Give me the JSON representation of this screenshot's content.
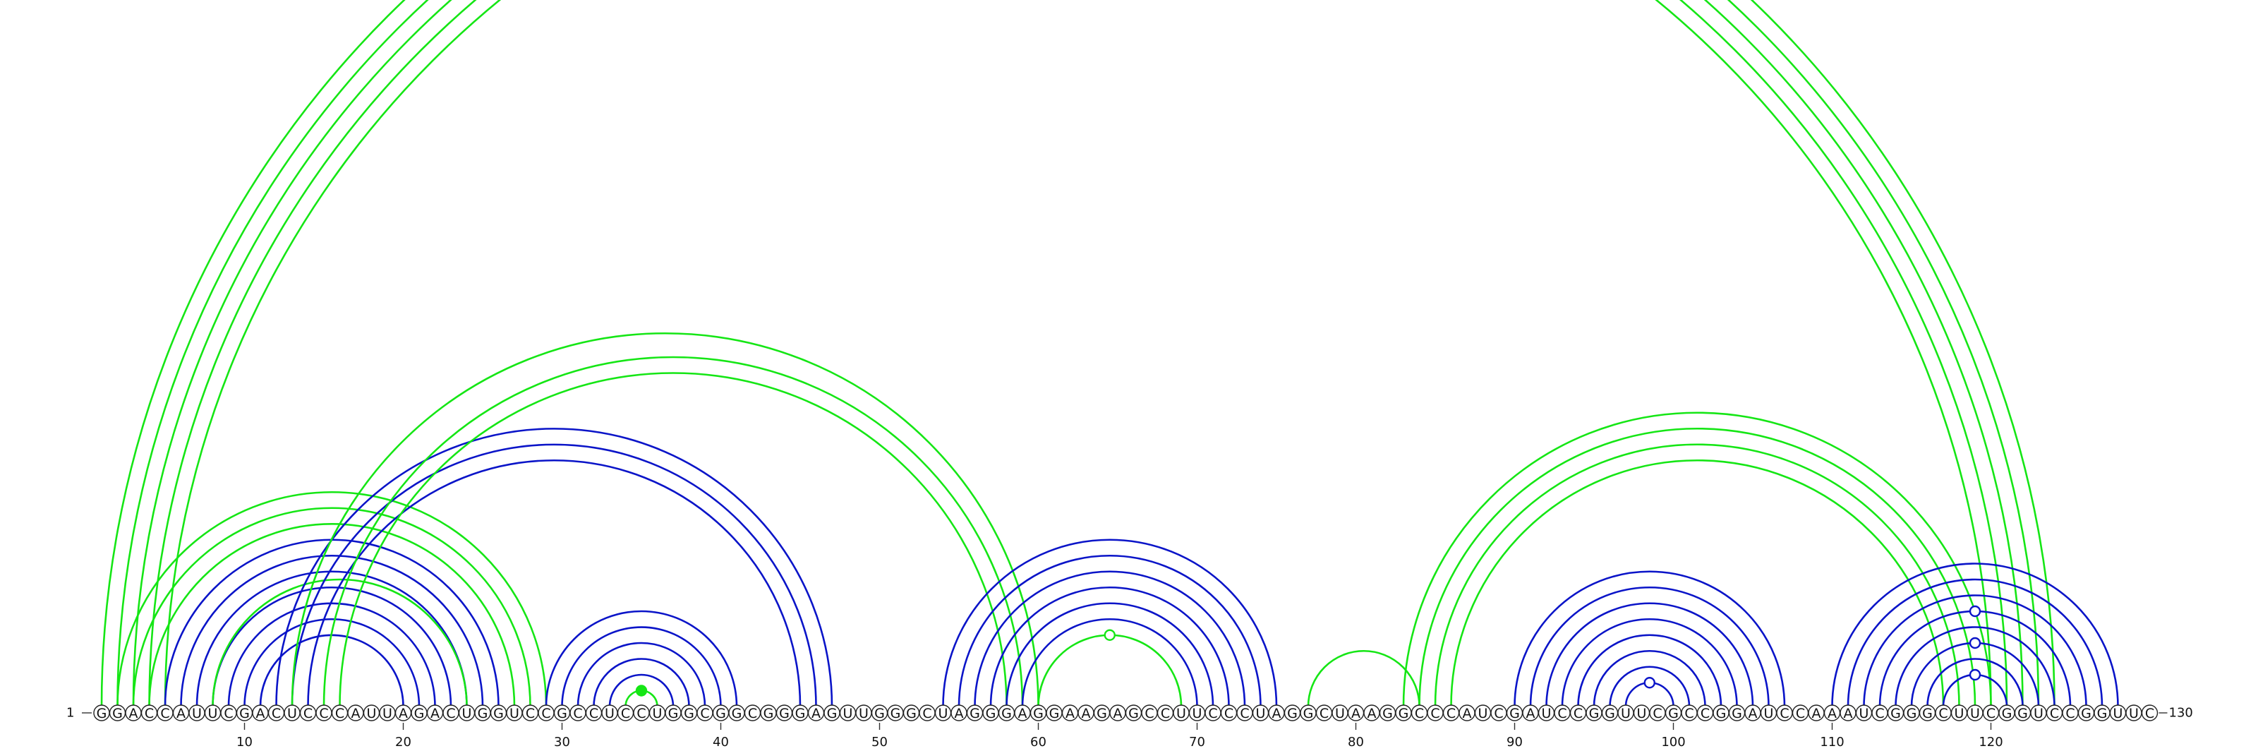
{
  "sequence": "GGACCAUUCGACUCCCAUUAGACUGGUCCGCCUCCUGGCGGCGGGAGUUGGGCUAGGGAGGAAGAGCCUUCCCUAGGCUAAGGCCCAUCGAUCCGGUUCGCCGGAUCCAAAUCGGGCUUCGGUCCGGUUC",
  "start_label": "1",
  "end_label": "130",
  "tick_labels": [
    "10",
    "20",
    "30",
    "40",
    "50",
    "60",
    "70",
    "80",
    "90",
    "100",
    "110",
    "120"
  ],
  "tick_positions": [
    10,
    20,
    30,
    40,
    50,
    60,
    70,
    80,
    90,
    100,
    110,
    120
  ],
  "colors": {
    "green": "#15e615",
    "blue": "#0a14c8"
  },
  "arcs": [
    {
      "i": 1,
      "j": 124,
      "color": "green"
    },
    {
      "i": 2,
      "j": 123,
      "color": "green"
    },
    {
      "i": 3,
      "j": 122,
      "color": "green"
    },
    {
      "i": 4,
      "j": 121,
      "color": "green"
    },
    {
      "i": 5,
      "j": 120,
      "color": "green"
    },
    {
      "i": 2,
      "j": 29,
      "color": "green"
    },
    {
      "i": 3,
      "j": 28,
      "color": "green"
    },
    {
      "i": 4,
      "j": 27,
      "color": "green"
    },
    {
      "i": 5,
      "j": 26,
      "color": "blue"
    },
    {
      "i": 6,
      "j": 25,
      "color": "blue"
    },
    {
      "i": 7,
      "j": 24,
      "color": "blue"
    },
    {
      "i": 8,
      "j": 23,
      "color": "blue"
    },
    {
      "i": 9,
      "j": 22,
      "color": "blue"
    },
    {
      "i": 10,
      "j": 21,
      "color": "blue"
    },
    {
      "i": 11,
      "j": 20,
      "color": "blue"
    },
    {
      "i": 8,
      "j": 24,
      "color": "green"
    },
    {
      "i": 12,
      "j": 47,
      "color": "blue"
    },
    {
      "i": 13,
      "j": 46,
      "color": "blue"
    },
    {
      "i": 14,
      "j": 45,
      "color": "blue"
    },
    {
      "i": 13,
      "j": 60,
      "color": "green"
    },
    {
      "i": 15,
      "j": 59,
      "color": "green"
    },
    {
      "i": 16,
      "j": 58,
      "color": "green"
    },
    {
      "i": 29,
      "j": 41,
      "color": "blue"
    },
    {
      "i": 30,
      "j": 40,
      "color": "blue"
    },
    {
      "i": 31,
      "j": 39,
      "color": "blue"
    },
    {
      "i": 32,
      "j": 38,
      "color": "blue"
    },
    {
      "i": 33,
      "j": 37,
      "color": "blue"
    },
    {
      "i": 34,
      "j": 36,
      "color": "green"
    },
    {
      "i": 54,
      "j": 75,
      "color": "blue"
    },
    {
      "i": 55,
      "j": 74,
      "color": "blue"
    },
    {
      "i": 56,
      "j": 73,
      "color": "blue"
    },
    {
      "i": 57,
      "j": 72,
      "color": "blue"
    },
    {
      "i": 58,
      "j": 71,
      "color": "blue"
    },
    {
      "i": 59,
      "j": 70,
      "color": "blue"
    },
    {
      "i": 60,
      "j": 69,
      "color": "green"
    },
    {
      "i": 77,
      "j": 84,
      "color": "green"
    },
    {
      "i": 83,
      "j": 120,
      "color": "green"
    },
    {
      "i": 84,
      "j": 119,
      "color": "green"
    },
    {
      "i": 85,
      "j": 118,
      "color": "green"
    },
    {
      "i": 86,
      "j": 117,
      "color": "green"
    },
    {
      "i": 90,
      "j": 107,
      "color": "blue"
    },
    {
      "i": 91,
      "j": 106,
      "color": "blue"
    },
    {
      "i": 92,
      "j": 105,
      "color": "blue"
    },
    {
      "i": 93,
      "j": 104,
      "color": "blue"
    },
    {
      "i": 94,
      "j": 103,
      "color": "blue"
    },
    {
      "i": 95,
      "j": 102,
      "color": "blue"
    },
    {
      "i": 96,
      "j": 101,
      "color": "blue"
    },
    {
      "i": 97,
      "j": 100,
      "color": "blue"
    },
    {
      "i": 110,
      "j": 128,
      "color": "blue"
    },
    {
      "i": 111,
      "j": 127,
      "color": "blue"
    },
    {
      "i": 112,
      "j": 126,
      "color": "blue"
    },
    {
      "i": 113,
      "j": 125,
      "color": "blue"
    },
    {
      "i": 114,
      "j": 124,
      "color": "blue"
    },
    {
      "i": 115,
      "j": 123,
      "color": "blue"
    },
    {
      "i": 116,
      "j": 122,
      "color": "blue"
    },
    {
      "i": 117,
      "j": 121,
      "color": "blue"
    }
  ],
  "markers": [
    {
      "pos": 35,
      "color": "green",
      "filled": true
    },
    {
      "pos": 65,
      "color": "green",
      "filled": false
    },
    {
      "pos": 99,
      "color": "blue",
      "filled": false
    },
    {
      "pos": 120,
      "color": "blue",
      "filled": false
    },
    {
      "pos": 120,
      "color": "blue",
      "filled": false
    },
    {
      "pos": 120,
      "color": "blue",
      "filled": false
    }
  ]
}
